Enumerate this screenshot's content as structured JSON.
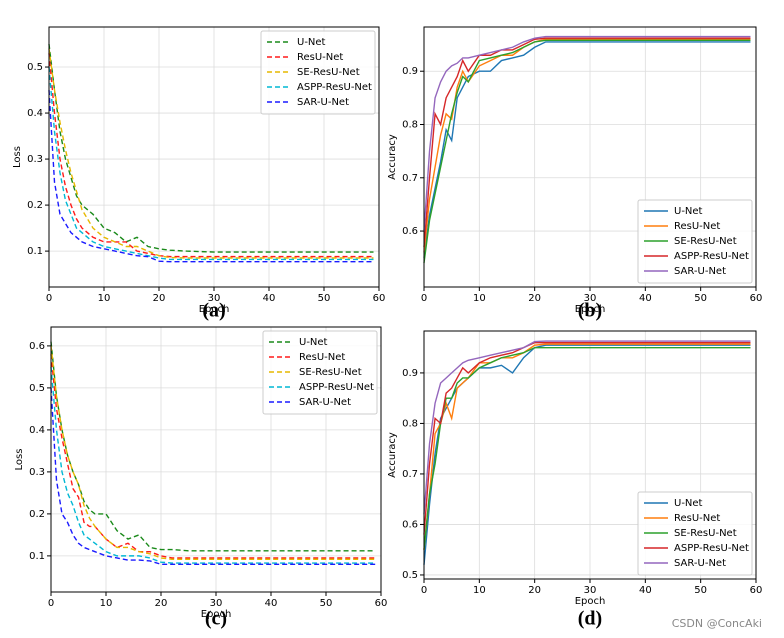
{
  "chart_data": [
    {
      "type": "line",
      "caption": "(a)",
      "x_label": "Epoch",
      "y_label": "Loss",
      "x": [
        0,
        1,
        2,
        3,
        4,
        5,
        6,
        7,
        8,
        10,
        12,
        14,
        16,
        18,
        20,
        22,
        25,
        30,
        40,
        50,
        59
      ],
      "xlim": [
        0,
        60
      ],
      "xticks": [
        0,
        10,
        20,
        30,
        40,
        50,
        60
      ],
      "ylim": [
        0.022,
        0.587
      ],
      "yticks": [
        0.1,
        0.2,
        0.3,
        0.4,
        0.5
      ],
      "grid": true,
      "line_style": "dashed",
      "legend_position": "upper right",
      "series": [
        {
          "name": "U-Net",
          "color": "#1a8a1a",
          "values": [
            0.55,
            0.45,
            0.36,
            0.3,
            0.26,
            0.22,
            0.2,
            0.19,
            0.18,
            0.15,
            0.14,
            0.12,
            0.13,
            0.11,
            0.105,
            0.102,
            0.1,
            0.098,
            0.098,
            0.098,
            0.098
          ]
        },
        {
          "name": "ResU-Net",
          "color": "#ff1a1a",
          "values": [
            0.53,
            0.4,
            0.3,
            0.24,
            0.2,
            0.17,
            0.15,
            0.14,
            0.13,
            0.12,
            0.12,
            0.12,
            0.1,
            0.095,
            0.09,
            0.088,
            0.088,
            0.088,
            0.088,
            0.088,
            0.088
          ]
        },
        {
          "name": "SE-ResU-Net",
          "color": "#e6b800",
          "values": [
            0.54,
            0.45,
            0.38,
            0.32,
            0.27,
            0.23,
            0.19,
            0.17,
            0.15,
            0.13,
            0.12,
            0.11,
            0.11,
            0.1,
            0.09,
            0.086,
            0.085,
            0.085,
            0.085,
            0.085,
            0.085
          ]
        },
        {
          "name": "ASPP-ResU-Net",
          "color": "#00b8d4",
          "values": [
            0.5,
            0.36,
            0.27,
            0.21,
            0.18,
            0.15,
            0.14,
            0.13,
            0.12,
            0.11,
            0.105,
            0.1,
            0.095,
            0.09,
            0.085,
            0.082,
            0.082,
            0.082,
            0.082,
            0.082,
            0.082
          ]
        },
        {
          "name": "SAR-U-Net",
          "color": "#1a1aff",
          "values": [
            0.45,
            0.25,
            0.18,
            0.16,
            0.14,
            0.13,
            0.12,
            0.115,
            0.11,
            0.105,
            0.1,
            0.095,
            0.09,
            0.088,
            0.078,
            0.077,
            0.077,
            0.077,
            0.077,
            0.077,
            0.077
          ]
        }
      ]
    },
    {
      "type": "line",
      "caption": "(b)",
      "x_label": "Epoch",
      "y_label": "Accuracy",
      "x": [
        0,
        1,
        2,
        3,
        4,
        5,
        6,
        7,
        8,
        10,
        12,
        14,
        16,
        18,
        20,
        22,
        25,
        30,
        40,
        50,
        59
      ],
      "xlim": [
        0,
        60
      ],
      "xticks": [
        0,
        10,
        20,
        30,
        40,
        50,
        60
      ],
      "ylim": [
        0.495,
        0.983
      ],
      "yticks": [
        0.6,
        0.7,
        0.8,
        0.9
      ],
      "grid": true,
      "line_style": "solid",
      "legend_position": "lower right",
      "series": [
        {
          "name": "U-Net",
          "color": "#1f77b4",
          "values": [
            0.55,
            0.63,
            0.68,
            0.73,
            0.79,
            0.77,
            0.85,
            0.87,
            0.89,
            0.9,
            0.9,
            0.92,
            0.925,
            0.93,
            0.945,
            0.955,
            0.955,
            0.955,
            0.955,
            0.955,
            0.955
          ]
        },
        {
          "name": "ResU-Net",
          "color": "#ff7f0e",
          "values": [
            0.56,
            0.66,
            0.72,
            0.78,
            0.82,
            0.81,
            0.87,
            0.9,
            0.88,
            0.91,
            0.92,
            0.93,
            0.93,
            0.945,
            0.955,
            0.96,
            0.96,
            0.96,
            0.96,
            0.96,
            0.96
          ]
        },
        {
          "name": "SE-ResU-Net",
          "color": "#2ca02c",
          "values": [
            0.54,
            0.62,
            0.67,
            0.72,
            0.77,
            0.82,
            0.86,
            0.89,
            0.88,
            0.92,
            0.925,
            0.93,
            0.935,
            0.945,
            0.955,
            0.958,
            0.958,
            0.958,
            0.958,
            0.958,
            0.958
          ]
        },
        {
          "name": "ASPP-ResU-Net",
          "color": "#d62728",
          "values": [
            0.57,
            0.7,
            0.82,
            0.8,
            0.85,
            0.87,
            0.89,
            0.92,
            0.9,
            0.93,
            0.93,
            0.94,
            0.94,
            0.95,
            0.96,
            0.962,
            0.962,
            0.962,
            0.962,
            0.962,
            0.962
          ]
        },
        {
          "name": "SAR-U-Net",
          "color": "#9467bd",
          "values": [
            0.6,
            0.75,
            0.85,
            0.88,
            0.9,
            0.91,
            0.915,
            0.925,
            0.925,
            0.93,
            0.935,
            0.94,
            0.945,
            0.955,
            0.962,
            0.965,
            0.965,
            0.965,
            0.965,
            0.965,
            0.965
          ]
        }
      ]
    },
    {
      "type": "line",
      "caption": "(c)",
      "x_label": "Epoch",
      "y_label": "Loss",
      "x": [
        0,
        1,
        2,
        3,
        4,
        5,
        6,
        7,
        8,
        10,
        12,
        14,
        16,
        18,
        20,
        22,
        25,
        30,
        40,
        50,
        59
      ],
      "xlim": [
        0,
        60
      ],
      "xticks": [
        0,
        10,
        20,
        30,
        40,
        50,
        60
      ],
      "ylim": [
        0.014,
        0.645
      ],
      "yticks": [
        0.1,
        0.2,
        0.3,
        0.4,
        0.5,
        0.6
      ],
      "grid": true,
      "line_style": "dashed",
      "legend_position": "upper right",
      "series": [
        {
          "name": "U-Net",
          "color": "#1a8a1a",
          "values": [
            0.61,
            0.48,
            0.4,
            0.34,
            0.3,
            0.27,
            0.23,
            0.21,
            0.2,
            0.2,
            0.16,
            0.14,
            0.15,
            0.12,
            0.115,
            0.115,
            0.112,
            0.112,
            0.112,
            0.112,
            0.112
          ]
        },
        {
          "name": "ResU-Net",
          "color": "#ff1a1a",
          "values": [
            0.58,
            0.45,
            0.38,
            0.32,
            0.26,
            0.24,
            0.18,
            0.17,
            0.17,
            0.14,
            0.12,
            0.13,
            0.11,
            0.11,
            0.1,
            0.095,
            0.095,
            0.095,
            0.095,
            0.095,
            0.095
          ]
        },
        {
          "name": "SE-ResU-Net",
          "color": "#e6b800",
          "values": [
            0.6,
            0.48,
            0.4,
            0.34,
            0.3,
            0.27,
            0.22,
            0.19,
            0.17,
            0.14,
            0.12,
            0.12,
            0.11,
            0.105,
            0.095,
            0.092,
            0.092,
            0.092,
            0.092,
            0.092,
            0.092
          ]
        },
        {
          "name": "ASPP-ResU-Net",
          "color": "#00b8d4",
          "values": [
            0.55,
            0.4,
            0.3,
            0.25,
            0.22,
            0.18,
            0.15,
            0.14,
            0.13,
            0.11,
            0.1,
            0.1,
            0.1,
            0.095,
            0.085,
            0.083,
            0.083,
            0.083,
            0.083,
            0.083,
            0.083
          ]
        },
        {
          "name": "SAR-U-Net",
          "color": "#1a1aff",
          "values": [
            0.5,
            0.28,
            0.2,
            0.18,
            0.15,
            0.13,
            0.12,
            0.115,
            0.11,
            0.1,
            0.095,
            0.09,
            0.09,
            0.088,
            0.08,
            0.08,
            0.08,
            0.08,
            0.08,
            0.08,
            0.08
          ]
        }
      ]
    },
    {
      "type": "line",
      "caption": "(d)",
      "x_label": "Epoch",
      "y_label": "Accuracy",
      "x": [
        0,
        1,
        2,
        3,
        4,
        5,
        6,
        7,
        8,
        10,
        12,
        14,
        16,
        18,
        20,
        22,
        25,
        30,
        40,
        50,
        59
      ],
      "xlim": [
        0,
        60
      ],
      "xticks": [
        0,
        10,
        20,
        30,
        40,
        50,
        60
      ],
      "ylim": [
        0.492,
        0.983
      ],
      "yticks": [
        0.5,
        0.6,
        0.7,
        0.8,
        0.9
      ],
      "grid": true,
      "line_style": "solid",
      "legend_position": "lower right",
      "series": [
        {
          "name": "U-Net",
          "color": "#1f77b4",
          "values": [
            0.52,
            0.64,
            0.74,
            0.81,
            0.83,
            0.85,
            0.87,
            0.88,
            0.89,
            0.91,
            0.91,
            0.915,
            0.9,
            0.93,
            0.95,
            0.955,
            0.955,
            0.955,
            0.955,
            0.955,
            0.955
          ]
        },
        {
          "name": "ResU-Net",
          "color": "#ff7f0e",
          "values": [
            0.55,
            0.66,
            0.78,
            0.8,
            0.84,
            0.81,
            0.87,
            0.88,
            0.89,
            0.92,
            0.92,
            0.93,
            0.93,
            0.94,
            0.955,
            0.957,
            0.957,
            0.957,
            0.957,
            0.957,
            0.957
          ]
        },
        {
          "name": "SE-ResU-Net",
          "color": "#2ca02c",
          "values": [
            0.55,
            0.66,
            0.72,
            0.8,
            0.85,
            0.85,
            0.88,
            0.89,
            0.89,
            0.91,
            0.92,
            0.93,
            0.935,
            0.94,
            0.95,
            0.95,
            0.95,
            0.95,
            0.95,
            0.95,
            0.95
          ]
        },
        {
          "name": "ASPP-ResU-Net",
          "color": "#d62728",
          "values": [
            0.58,
            0.72,
            0.81,
            0.8,
            0.86,
            0.87,
            0.89,
            0.91,
            0.9,
            0.92,
            0.93,
            0.935,
            0.94,
            0.95,
            0.96,
            0.96,
            0.96,
            0.96,
            0.96,
            0.96,
            0.96
          ]
        },
        {
          "name": "SAR-U-Net",
          "color": "#9467bd",
          "values": [
            0.62,
            0.76,
            0.84,
            0.88,
            0.89,
            0.9,
            0.91,
            0.92,
            0.925,
            0.93,
            0.935,
            0.94,
            0.945,
            0.95,
            0.962,
            0.963,
            0.963,
            0.963,
            0.963,
            0.963,
            0.963
          ]
        }
      ]
    }
  ],
  "watermark": "CSDN @ConcAki"
}
